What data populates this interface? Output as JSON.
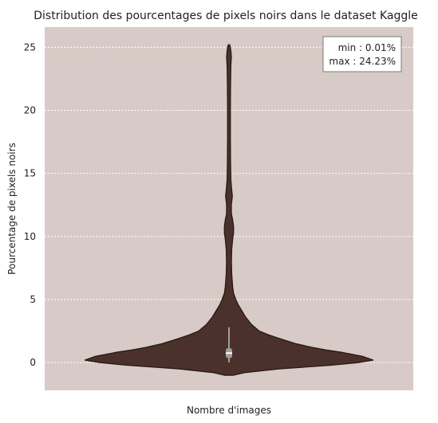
{
  "chart_data": {
    "type": "violin",
    "title": "Distribution des pourcentages de pixels noirs dans le dataset Kaggle",
    "xlabel": "Nombre d'images",
    "ylabel": "Pourcentage de pixels noirs",
    "ylim": [
      -2.2,
      26.6
    ],
    "yticks": [
      0,
      5,
      10,
      15,
      20,
      25
    ],
    "grid": "horizontal dotted",
    "annotation": [
      "min : 0.01%",
      "max : 24.23%"
    ],
    "annotation_position": "top-right",
    "colors": {
      "background": "#d8cbc7",
      "violin_fill": "#4b312b",
      "violin_edge": "#2a1c18",
      "box": "#9e9e9e",
      "median": "#ffffff",
      "grid": "#ffffff"
    },
    "density_profile": {
      "y": [
        -1.0,
        -0.8,
        -0.5,
        -0.2,
        0.0,
        0.2,
        0.5,
        0.8,
        1.0,
        1.2,
        1.5,
        1.8,
        2.0,
        2.2,
        2.5,
        2.8,
        3.0,
        3.3,
        3.6,
        4.0,
        4.3,
        4.6,
        5.0,
        5.5,
        6.0,
        7.0,
        8.0,
        9.0,
        9.8,
        10.3,
        10.8,
        11.3,
        11.8,
        12.5,
        13.2,
        13.8,
        14.5,
        16.0,
        18.0,
        20.0,
        22.0,
        23.5,
        24.2,
        24.6,
        25.0,
        25.2
      ],
      "half_width": [
        0.03,
        0.1,
        0.33,
        0.68,
        0.85,
        0.95,
        0.88,
        0.75,
        0.64,
        0.55,
        0.44,
        0.36,
        0.31,
        0.26,
        0.2,
        0.17,
        0.15,
        0.13,
        0.11,
        0.09,
        0.075,
        0.06,
        0.045,
        0.03,
        0.024,
        0.018,
        0.016,
        0.018,
        0.024,
        0.03,
        0.03,
        0.024,
        0.016,
        0.015,
        0.022,
        0.017,
        0.012,
        0.01,
        0.009,
        0.009,
        0.01,
        0.012,
        0.015,
        0.013,
        0.009,
        0.004
      ]
    },
    "box": {
      "q1": 0.35,
      "median": 0.75,
      "q3": 1.15,
      "whisker_low": 0.02,
      "whisker_high": 2.8
    }
  }
}
